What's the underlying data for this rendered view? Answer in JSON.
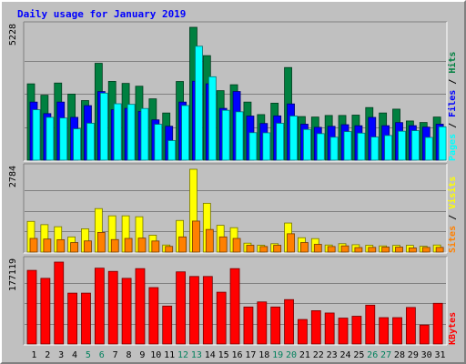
{
  "chart_data": {
    "type": "bar",
    "title": "Daily usage for January 2019",
    "categories": [
      "1",
      "2",
      "3",
      "4",
      "5",
      "6",
      "7",
      "8",
      "9",
      "10",
      "11",
      "12",
      "13",
      "14",
      "15",
      "16",
      "17",
      "18",
      "19",
      "20",
      "21",
      "22",
      "23",
      "24",
      "25",
      "26",
      "27",
      "28",
      "29",
      "30",
      "31"
    ],
    "weekend_days": [
      "5",
      "6",
      "12",
      "13",
      "19",
      "20",
      "26",
      "27"
    ],
    "panels": [
      {
        "id": "hits-files-pages",
        "ymax_label": "5228",
        "ymax": 5228,
        "series": [
          {
            "name": "Hits",
            "color": "#008040",
            "values": [
              3003,
              2556,
              3035,
              2600,
              2346,
              3812,
              3101,
              3021,
              2910,
              2413,
              1856,
              3097,
              5228,
              4113,
              2735,
              2968,
              2286,
              1793,
              2243,
              3645,
              1716,
              1697,
              1759,
              1759,
              1773,
              2070,
              1857,
              2008,
              1542,
              1483,
              1697
            ]
          },
          {
            "name": "Files",
            "color": "#0000ff",
            "values": [
              2286,
              1832,
              2286,
              1685,
              2146,
              2700,
              1985,
              2038,
              1915,
              1587,
              1335,
              2286,
              3106,
              3005,
              2038,
              2702,
              1737,
              1444,
              1743,
              2213,
              1416,
              1292,
              1332,
              1396,
              1355,
              1683,
              1357,
              1479,
              1358,
              1301,
              1416
            ]
          },
          {
            "name": "Pages",
            "color": "#00ffff",
            "values": [
              1985,
              1685,
              1658,
              1233,
              1453,
              2638,
              2220,
              2196,
              2033,
              1411,
              770,
              2151,
              4484,
              3283,
              1962,
              1903,
              1082,
              1076,
              1451,
              1737,
              1208,
              1044,
              904,
              1123,
              1064,
              910,
              971,
              1139,
              1160,
              896,
              1313
            ]
          }
        ],
        "legend": [
          "Pages",
          "Files",
          "Hits"
        ]
      },
      {
        "id": "visits-sites",
        "ymax_label": "2784",
        "ymax": 2784,
        "series": [
          {
            "name": "Visits",
            "color": "#ffff00",
            "values": [
              1032,
              922,
              852,
              510,
              783,
              1462,
              1219,
              1219,
              1188,
              568,
              238,
              1063,
              2784,
              1641,
              899,
              820,
              300,
              230,
              282,
              977,
              483,
              453,
              238,
              282,
              247,
              230,
              209,
              226,
              226,
              196,
              238
            ]
          },
          {
            "name": "Sites",
            "color": "#ff8000",
            "values": [
              459,
              438,
              417,
              320,
              375,
              660,
              421,
              459,
              470,
              372,
              191,
              510,
              1042,
              760,
              510,
              459,
              230,
              187,
              230,
              616,
              320,
              260,
              187,
              209,
              152,
              158,
              168,
              168,
              139,
              158,
              158
            ]
          }
        ],
        "legend": [
          "Sites",
          "Visits"
        ]
      },
      {
        "id": "kbytes",
        "ymax_label": "177119",
        "ymax": 177119,
        "series": [
          {
            "name": "KBytes",
            "color": "#ff0000",
            "values": [
              159235,
              142000,
              177119,
              110000,
              110000,
              164000,
              157000,
              142000,
              163000,
              122000,
              82000,
              156000,
              146000,
              146000,
              112000,
              163000,
              80000,
              91000,
              80000,
              96000,
              53000,
              72000,
              67000,
              56000,
              60000,
              84000,
              57000,
              57000,
              79000,
              41000,
              88000
            ]
          }
        ],
        "legend": [
          "KBytes"
        ]
      }
    ],
    "colors": {
      "background": "#c0c0c0",
      "plot": "#c0c0c0",
      "title": "#0000ff",
      "weekday_label": "#000000",
      "weekend_label": "#00805c",
      "grid": "#808080"
    },
    "grid": true,
    "legend_position": "right"
  }
}
